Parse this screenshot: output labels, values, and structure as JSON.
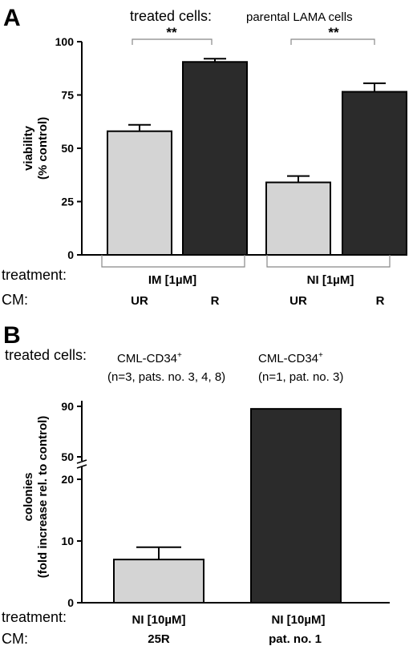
{
  "chart_data": [
    {
      "panel": "A",
      "type": "bar",
      "treated_cells_label": "treated cells:",
      "treated_cells_value": "parental LAMA cells",
      "ylabel_line1": "viability",
      "ylabel_line2": "(% control)",
      "ylim": [
        0,
        100
      ],
      "yticks": [
        "0",
        "25",
        "50",
        "75",
        "100"
      ],
      "row_labels": {
        "treatment": "treatment:",
        "cm": "CM:"
      },
      "groups": [
        {
          "treatment": "IM [1µM]",
          "significance": "**"
        },
        {
          "treatment": "NI  [1µM]",
          "significance": "**"
        }
      ],
      "bars": [
        {
          "cm": "UR",
          "value": 58,
          "error": 3,
          "color": "#d4d4d4"
        },
        {
          "cm": "R",
          "value": 90.5,
          "error": 1.5,
          "color": "#2b2b2b"
        },
        {
          "cm": "UR",
          "value": 34,
          "error": 3,
          "color": "#d4d4d4"
        },
        {
          "cm": "R",
          "value": 76.5,
          "error": 4,
          "color": "#2b2b2b"
        }
      ]
    },
    {
      "panel": "B",
      "type": "bar",
      "treated_cells_label": "treated cells:",
      "groups": [
        {
          "line1": "CML-CD34",
          "superscript": "+",
          "line2": "(n=3, pats. no. 3, 4, 8)"
        },
        {
          "line1": "CML-CD34",
          "superscript": "+",
          "line2": "(n=1, pat. no. 3)"
        }
      ],
      "ylabel_line1": "colonies",
      "ylabel_line2": "(fold increase rel. to control)",
      "yticks": [
        "0",
        "10",
        "20",
        "50",
        "90"
      ],
      "axis_break": [
        20,
        50
      ],
      "row_labels": {
        "treatment": "treatment:",
        "cm": "CM:"
      },
      "bars": [
        {
          "treatment": "NI  [10µM]",
          "cm": "25R",
          "value": 7,
          "error": 2,
          "color": "#d4d4d4"
        },
        {
          "treatment": "NI  [10µM]",
          "cm": "pat. no. 1",
          "value": 88,
          "color": "#2b2b2b"
        }
      ]
    }
  ],
  "panel_labels": [
    "A",
    "B"
  ]
}
